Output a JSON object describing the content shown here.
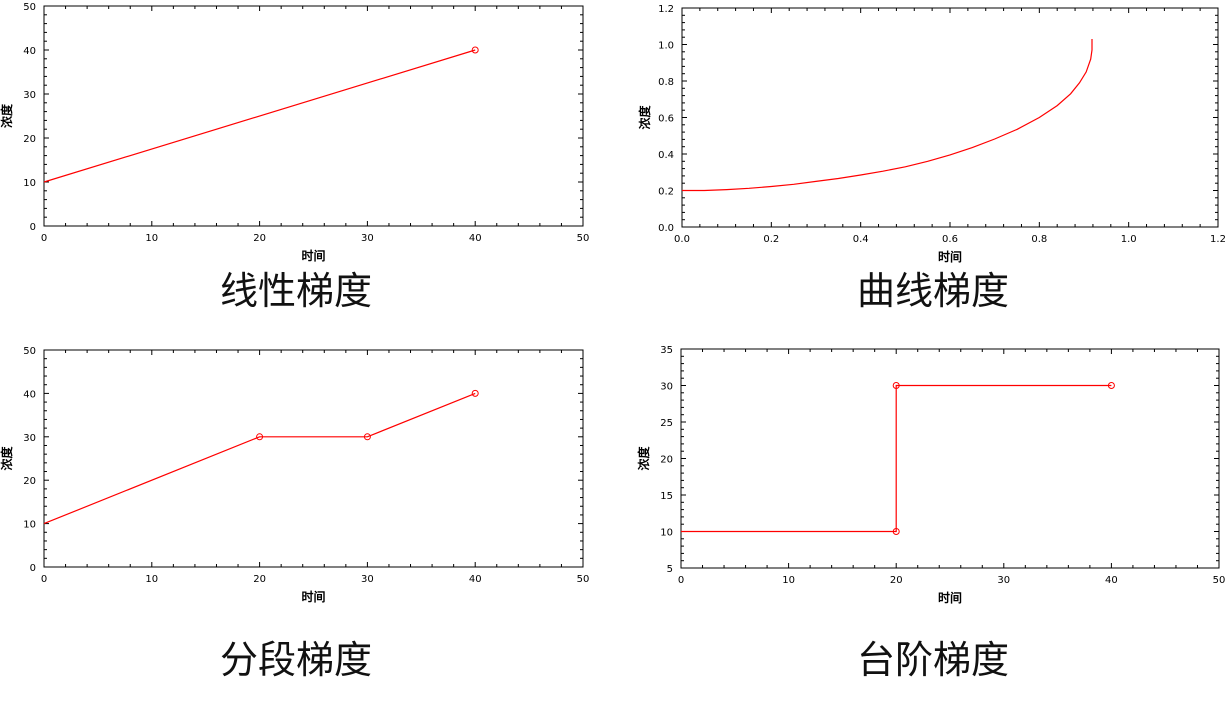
{
  "colors": {
    "line": "#ff0000",
    "axis": "#000000"
  },
  "charts": [
    {
      "caption": "线性梯度"
    },
    {
      "caption": "曲线梯度"
    },
    {
      "caption": "分段梯度"
    },
    {
      "caption": "台阶梯度"
    }
  ],
  "chart_data": [
    {
      "type": "line",
      "title": "",
      "xlabel": "时间",
      "ylabel": "浓度",
      "xlim": [
        0,
        50
      ],
      "ylim": [
        0,
        50
      ],
      "xticks": [
        "0",
        "10",
        "20",
        "30",
        "40",
        "50"
      ],
      "yticks": [
        "0",
        "10",
        "20",
        "30",
        "40",
        "50"
      ],
      "series": [
        {
          "x": [
            0,
            40
          ],
          "y": [
            10,
            40
          ],
          "markers": [
            false,
            true
          ]
        }
      ],
      "grid": false
    },
    {
      "type": "line",
      "title": "",
      "xlabel": "时间",
      "ylabel": "浓度",
      "xlim": [
        0,
        1.2
      ],
      "ylim": [
        0,
        1.2
      ],
      "xticks": [
        "0.0",
        "0.2",
        "0.4",
        "0.6",
        "0.8",
        "1.0",
        "1.2"
      ],
      "yticks": [
        "0.0",
        "0.2",
        "0.4",
        "0.6",
        "0.8",
        "1.0",
        "1.2"
      ],
      "series": [
        {
          "x": [
            0.0,
            0.05,
            0.1,
            0.15,
            0.2,
            0.25,
            0.3,
            0.35,
            0.4,
            0.45,
            0.5,
            0.55,
            0.6,
            0.65,
            0.7,
            0.75,
            0.8,
            0.84,
            0.87,
            0.89,
            0.905,
            0.915,
            0.918,
            0.918
          ],
          "y": [
            0.2,
            0.2,
            0.205,
            0.212,
            0.222,
            0.234,
            0.25,
            0.266,
            0.285,
            0.306,
            0.33,
            0.36,
            0.395,
            0.435,
            0.482,
            0.535,
            0.6,
            0.665,
            0.73,
            0.79,
            0.85,
            0.92,
            0.97,
            1.03
          ],
          "markers": false
        }
      ],
      "grid": false
    },
    {
      "type": "line",
      "title": "",
      "xlabel": "时间",
      "ylabel": "浓度",
      "xlim": [
        0,
        50
      ],
      "ylim": [
        0,
        50
      ],
      "xticks": [
        "0",
        "10",
        "20",
        "30",
        "40",
        "50"
      ],
      "yticks": [
        "0",
        "10",
        "20",
        "30",
        "40",
        "50"
      ],
      "series": [
        {
          "x": [
            0,
            20,
            30,
            40
          ],
          "y": [
            10,
            30,
            30,
            40
          ],
          "markers": [
            false,
            true,
            true,
            true
          ]
        }
      ],
      "grid": false
    },
    {
      "type": "line",
      "title": "",
      "xlabel": "时间",
      "ylabel": "浓度",
      "xlim": [
        0,
        50
      ],
      "ylim": [
        5,
        35
      ],
      "xticks": [
        "0",
        "10",
        "20",
        "30",
        "40",
        "50"
      ],
      "yticks": [
        "5",
        "10",
        "15",
        "20",
        "25",
        "30",
        "35"
      ],
      "series": [
        {
          "x": [
            0,
            20,
            20,
            40
          ],
          "y": [
            10,
            10,
            30,
            30
          ],
          "markers": [
            false,
            true,
            true,
            true
          ]
        }
      ],
      "grid": false
    }
  ]
}
